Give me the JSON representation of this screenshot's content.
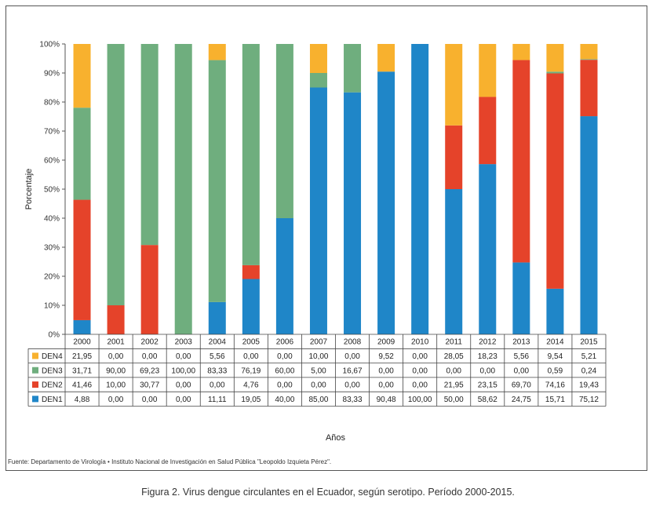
{
  "chart_data": {
    "type": "bar",
    "stacked": true,
    "percent": true,
    "ylabel": "Porcentaje",
    "xlabel": "Años",
    "ylim": [
      0,
      100
    ],
    "yticks": [
      "0%",
      "10%",
      "20%",
      "30%",
      "40%",
      "50%",
      "60%",
      "70%",
      "80%",
      "90%",
      "100%"
    ],
    "grid": false,
    "legend": "table-left",
    "categories": [
      "2000",
      "2001",
      "2002",
      "2003",
      "2004",
      "2005",
      "2006",
      "2007",
      "2008",
      "2009",
      "2010",
      "2011",
      "2012",
      "2013",
      "2014",
      "2015"
    ],
    "series": [
      {
        "name": "DEN1",
        "color": "#1f86c8",
        "values": [
          4.88,
          0,
          0,
          0,
          11.11,
          19.05,
          40,
          85,
          83.33,
          90.48,
          100,
          50,
          58.62,
          24.75,
          15.71,
          75.12
        ],
        "labels": [
          "4,88",
          "0,00",
          "0,00",
          "0,00",
          "11,11",
          "19,05",
          "40,00",
          "85,00",
          "83,33",
          "90,48",
          "100,00",
          "50,00",
          "58,62",
          "24,75",
          "15,71",
          "75,12"
        ]
      },
      {
        "name": "DEN2",
        "color": "#e5432a",
        "values": [
          41.46,
          10,
          30.77,
          0,
          0,
          4.76,
          0,
          0,
          0,
          0,
          0,
          21.95,
          23.15,
          69.7,
          74.16,
          19.43
        ],
        "labels": [
          "41,46",
          "10,00",
          "30,77",
          "0,00",
          "0,00",
          "4,76",
          "0,00",
          "0,00",
          "0,00",
          "0,00",
          "0,00",
          "21,95",
          "23,15",
          "69,70",
          "74,16",
          "19,43"
        ]
      },
      {
        "name": "DEN3",
        "color": "#6fae7e",
        "values": [
          31.71,
          90,
          69.23,
          100,
          83.33,
          76.19,
          60,
          5,
          16.67,
          0,
          0,
          0,
          0,
          0,
          0.59,
          0.24
        ],
        "labels": [
          "31,71",
          "90,00",
          "69,23",
          "100,00",
          "83,33",
          "76,19",
          "60,00",
          "5,00",
          "16,67",
          "0,00",
          "0,00",
          "0,00",
          "0,00",
          "0,00",
          "0,59",
          "0,24"
        ]
      },
      {
        "name": "DEN4",
        "color": "#f8b12e",
        "values": [
          21.95,
          0,
          0,
          0,
          5.56,
          0,
          0,
          10,
          0,
          9.52,
          0,
          28.05,
          18.23,
          5.56,
          9.54,
          5.21
        ],
        "labels": [
          "21,95",
          "0,00",
          "0,00",
          "0,00",
          "5,56",
          "0,00",
          "0,00",
          "10,00",
          "0,00",
          "9,52",
          "0,00",
          "28,05",
          "18,23",
          "5,56",
          "9,54",
          "5,21"
        ]
      }
    ],
    "table_row_order": [
      "DEN4",
      "DEN3",
      "DEN2",
      "DEN1"
    ]
  },
  "source": "Fuente: Departamento de Virología • Instituto Nacional de Investigación en Salud Pública \"Leopoldo Izquieta Pérez\".",
  "caption": "Figura 2. Virus dengue circulantes en el Ecuador, según serotipo. Período 2000-2015."
}
